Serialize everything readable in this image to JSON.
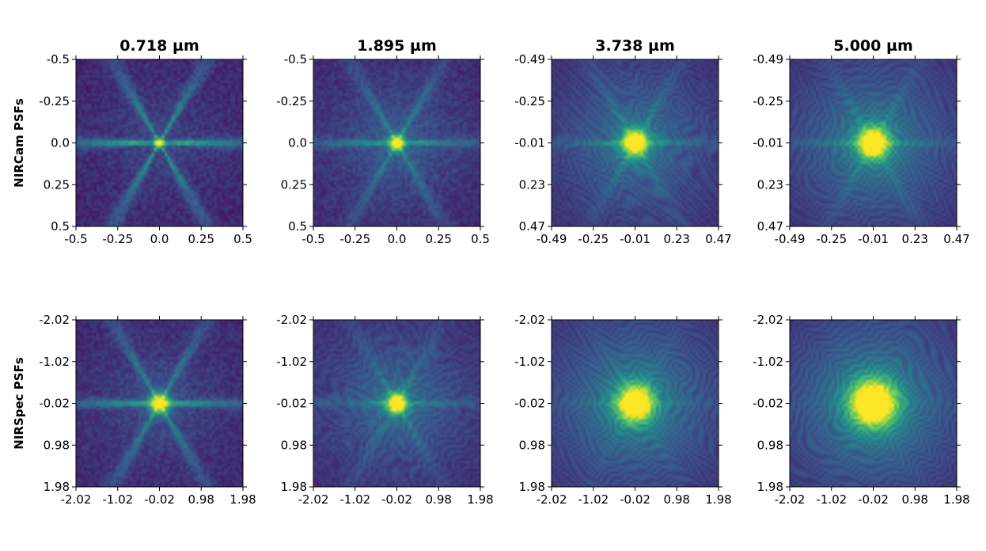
{
  "chart_data": {
    "type": "heatmap",
    "colormap": "viridis",
    "colors": [
      "#440154",
      "#3b528b",
      "#21918c",
      "#5ec962",
      "#fde725"
    ],
    "column_titles": [
      "0.718 µm",
      "1.895 µm",
      "3.738 µm",
      "5.000 µm"
    ],
    "row_labels": [
      "NIRCam PSFs",
      "NIRSpec PSFs"
    ],
    "panels": [
      {
        "row": 0,
        "col": 0,
        "instrument": "NIRCam",
        "wavelength": "0.718 µm",
        "xticks": [
          "-0.5",
          "-0.25",
          "0.0",
          "0.25",
          "0.5"
        ],
        "yticks": [
          "-0.5",
          "-0.25",
          "0.0",
          "0.25",
          "0.5"
        ],
        "pattern": {
          "spikes": 0.75,
          "rings": 0.08,
          "noise": 0.55,
          "core": 0.02,
          "ringfreq": 55,
          "bg": 0.15
        }
      },
      {
        "row": 0,
        "col": 1,
        "instrument": "NIRCam",
        "wavelength": "1.895 µm",
        "xticks": [
          "-0.5",
          "-0.25",
          "0.0",
          "0.25",
          "0.5"
        ],
        "yticks": [
          "-0.5",
          "-0.25",
          "0.0",
          "0.25",
          "0.5"
        ],
        "pattern": {
          "spikes": 0.45,
          "rings": 0.2,
          "noise": 0.45,
          "core": 0.03,
          "ringfreq": 40,
          "bg": 0.25
        }
      },
      {
        "row": 0,
        "col": 2,
        "instrument": "NIRCam",
        "wavelength": "3.738 µm",
        "xticks": [
          "-0.49",
          "-0.25",
          "-0.01",
          "0.23",
          "0.47"
        ],
        "yticks": [
          "-0.49",
          "-0.25",
          "-0.01",
          "0.23",
          "0.47"
        ],
        "pattern": {
          "spikes": 0.25,
          "rings": 0.45,
          "noise": 0.25,
          "core": 0.05,
          "ringfreq": 24,
          "bg": 0.35
        }
      },
      {
        "row": 0,
        "col": 3,
        "instrument": "NIRCam",
        "wavelength": "5.000 µm",
        "xticks": [
          "-0.49",
          "-0.25",
          "-0.01",
          "0.23",
          "0.47"
        ],
        "yticks": [
          "-0.49",
          "-0.25",
          "-0.01",
          "0.23",
          "0.47"
        ],
        "pattern": {
          "spikes": 0.2,
          "rings": 0.55,
          "noise": 0.15,
          "core": 0.06,
          "ringfreq": 18,
          "bg": 0.4
        }
      },
      {
        "row": 1,
        "col": 0,
        "instrument": "NIRSpec",
        "wavelength": "0.718 µm",
        "xticks": [
          "-2.02",
          "-1.02",
          "-0.02",
          "0.98",
          "1.98"
        ],
        "yticks": [
          "-2.02",
          "-1.02",
          "-0.02",
          "0.98",
          "1.98"
        ],
        "pattern": {
          "spikes": 0.6,
          "rings": 0.1,
          "noise": 0.5,
          "core": 0.04,
          "ringfreq": 50,
          "bg": 0.2
        }
      },
      {
        "row": 1,
        "col": 1,
        "instrument": "NIRSpec",
        "wavelength": "1.895 µm",
        "xticks": [
          "-2.02",
          "-1.02",
          "-0.02",
          "0.98",
          "1.98"
        ],
        "yticks": [
          "-2.02",
          "-1.02",
          "-0.02",
          "0.98",
          "1.98"
        ],
        "pattern": {
          "spikes": 0.25,
          "rings": 0.4,
          "noise": 0.3,
          "core": 0.04,
          "ringfreq": 35,
          "bg": 0.3
        }
      },
      {
        "row": 1,
        "col": 2,
        "instrument": "NIRSpec",
        "wavelength": "3.738 µm",
        "xticks": [
          "-2.02",
          "-1.02",
          "-0.02",
          "0.98",
          "1.98"
        ],
        "yticks": [
          "-2.02",
          "-1.02",
          "-0.02",
          "0.98",
          "1.98"
        ],
        "pattern": {
          "spikes": 0.1,
          "rings": 0.6,
          "noise": 0.1,
          "core": 0.07,
          "ringfreq": 20,
          "bg": 0.45
        }
      },
      {
        "row": 1,
        "col": 3,
        "instrument": "NIRSpec",
        "wavelength": "5.000 µm",
        "xticks": [
          "-2.02",
          "-1.02",
          "-0.02",
          "0.98",
          "1.98"
        ],
        "yticks": [
          "-2.02",
          "-1.02",
          "-0.02",
          "0.98",
          "1.98"
        ],
        "pattern": {
          "spikes": 0.05,
          "rings": 0.65,
          "noise": 0.08,
          "core": 0.09,
          "ringfreq": 15,
          "bg": 0.5
        }
      }
    ]
  }
}
